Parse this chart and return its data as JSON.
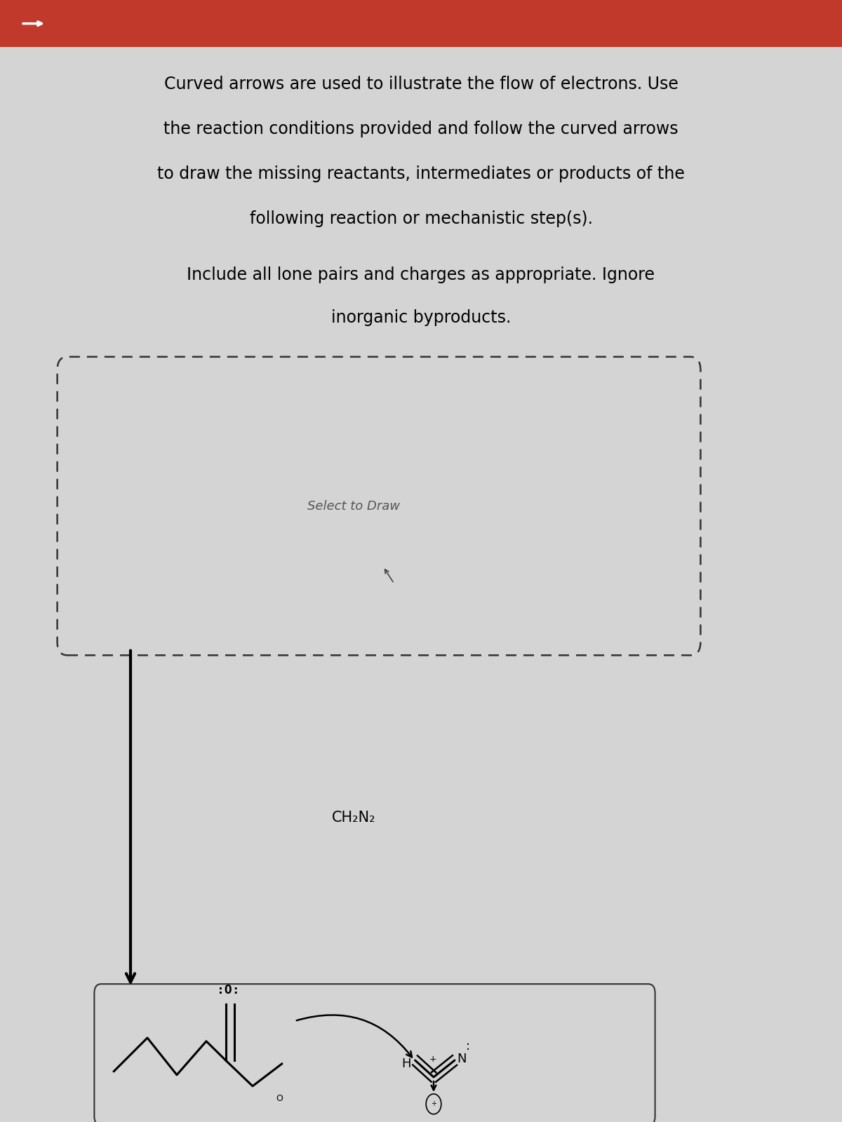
{
  "bg_color": "#d4d4d4",
  "header_color": "#c0392b",
  "text_lines_para1": [
    "Curved arrows are used to illustrate the flow of electrons. Use",
    "the reaction conditions provided and follow the curved arrows",
    "to draw the missing reactants, intermediates or products of the",
    "following reaction or mechanistic step(s)."
  ],
  "text_lines_para2": [
    "Include all lone pairs and charges as appropriate. Ignore",
    "inorganic byproducts."
  ],
  "select_to_draw": "Select to Draw",
  "reagent_label": "CH₂N₂",
  "font_size_main": 17,
  "font_size_label": 13,
  "font_size_reagent": 15
}
